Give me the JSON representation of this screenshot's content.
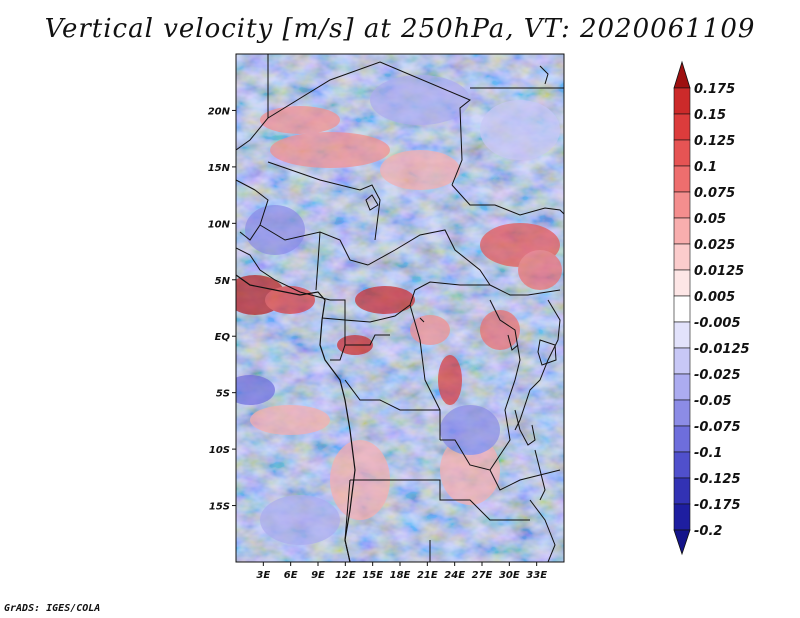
{
  "title": "Vertical velocity [m/s] at 250hPa, VT: 2020061109",
  "credit": "GrADS: IGES/COLA",
  "map": {
    "variable": "Vertical velocity",
    "units": "m/s",
    "level": "250hPa",
    "valid_time": "2020061109",
    "lon_range": [
      0,
      36
    ],
    "lat_range": [
      -20,
      25
    ],
    "x_ticks": [
      {
        "value": 3,
        "label": "3E"
      },
      {
        "value": 6,
        "label": "6E"
      },
      {
        "value": 9,
        "label": "9E"
      },
      {
        "value": 12,
        "label": "12E"
      },
      {
        "value": 15,
        "label": "15E"
      },
      {
        "value": 18,
        "label": "18E"
      },
      {
        "value": 21,
        "label": "21E"
      },
      {
        "value": 24,
        "label": "24E"
      },
      {
        "value": 27,
        "label": "27E"
      },
      {
        "value": 30,
        "label": "30E"
      },
      {
        "value": 33,
        "label": "33E"
      }
    ],
    "y_ticks": [
      {
        "value": 20,
        "label": "20N"
      },
      {
        "value": 15,
        "label": "15N"
      },
      {
        "value": 10,
        "label": "10N"
      },
      {
        "value": 5,
        "label": "5N"
      },
      {
        "value": 0,
        "label": "EQ"
      },
      {
        "value": -5,
        "label": "5S"
      },
      {
        "value": -10,
        "label": "10S"
      },
      {
        "value": -15,
        "label": "15S"
      }
    ]
  },
  "colorbar": {
    "levels": [
      "0.175",
      "0.15",
      "0.125",
      "0.1",
      "0.075",
      "0.05",
      "0.025",
      "0.0125",
      "0.005",
      "-0.005",
      "-0.0125",
      "-0.025",
      "-0.05",
      "-0.075",
      "-0.1",
      "-0.125",
      "-0.175",
      "-0.2"
    ],
    "colors": [
      "#b51e1e",
      "#cc2a2a",
      "#dc3c3c",
      "#e65454",
      "#ee6e6e",
      "#f48e8e",
      "#f8aeae",
      "#fbcccc",
      "#fde6e6",
      "#ffffff",
      "#e2e2fb",
      "#c8c8f6",
      "#acacf0",
      "#8c8ce6",
      "#6e6edc",
      "#5050cc",
      "#3232b4",
      "#1e1ea0"
    ],
    "top_color": "#9e1010",
    "bottom_color": "#14148a"
  }
}
